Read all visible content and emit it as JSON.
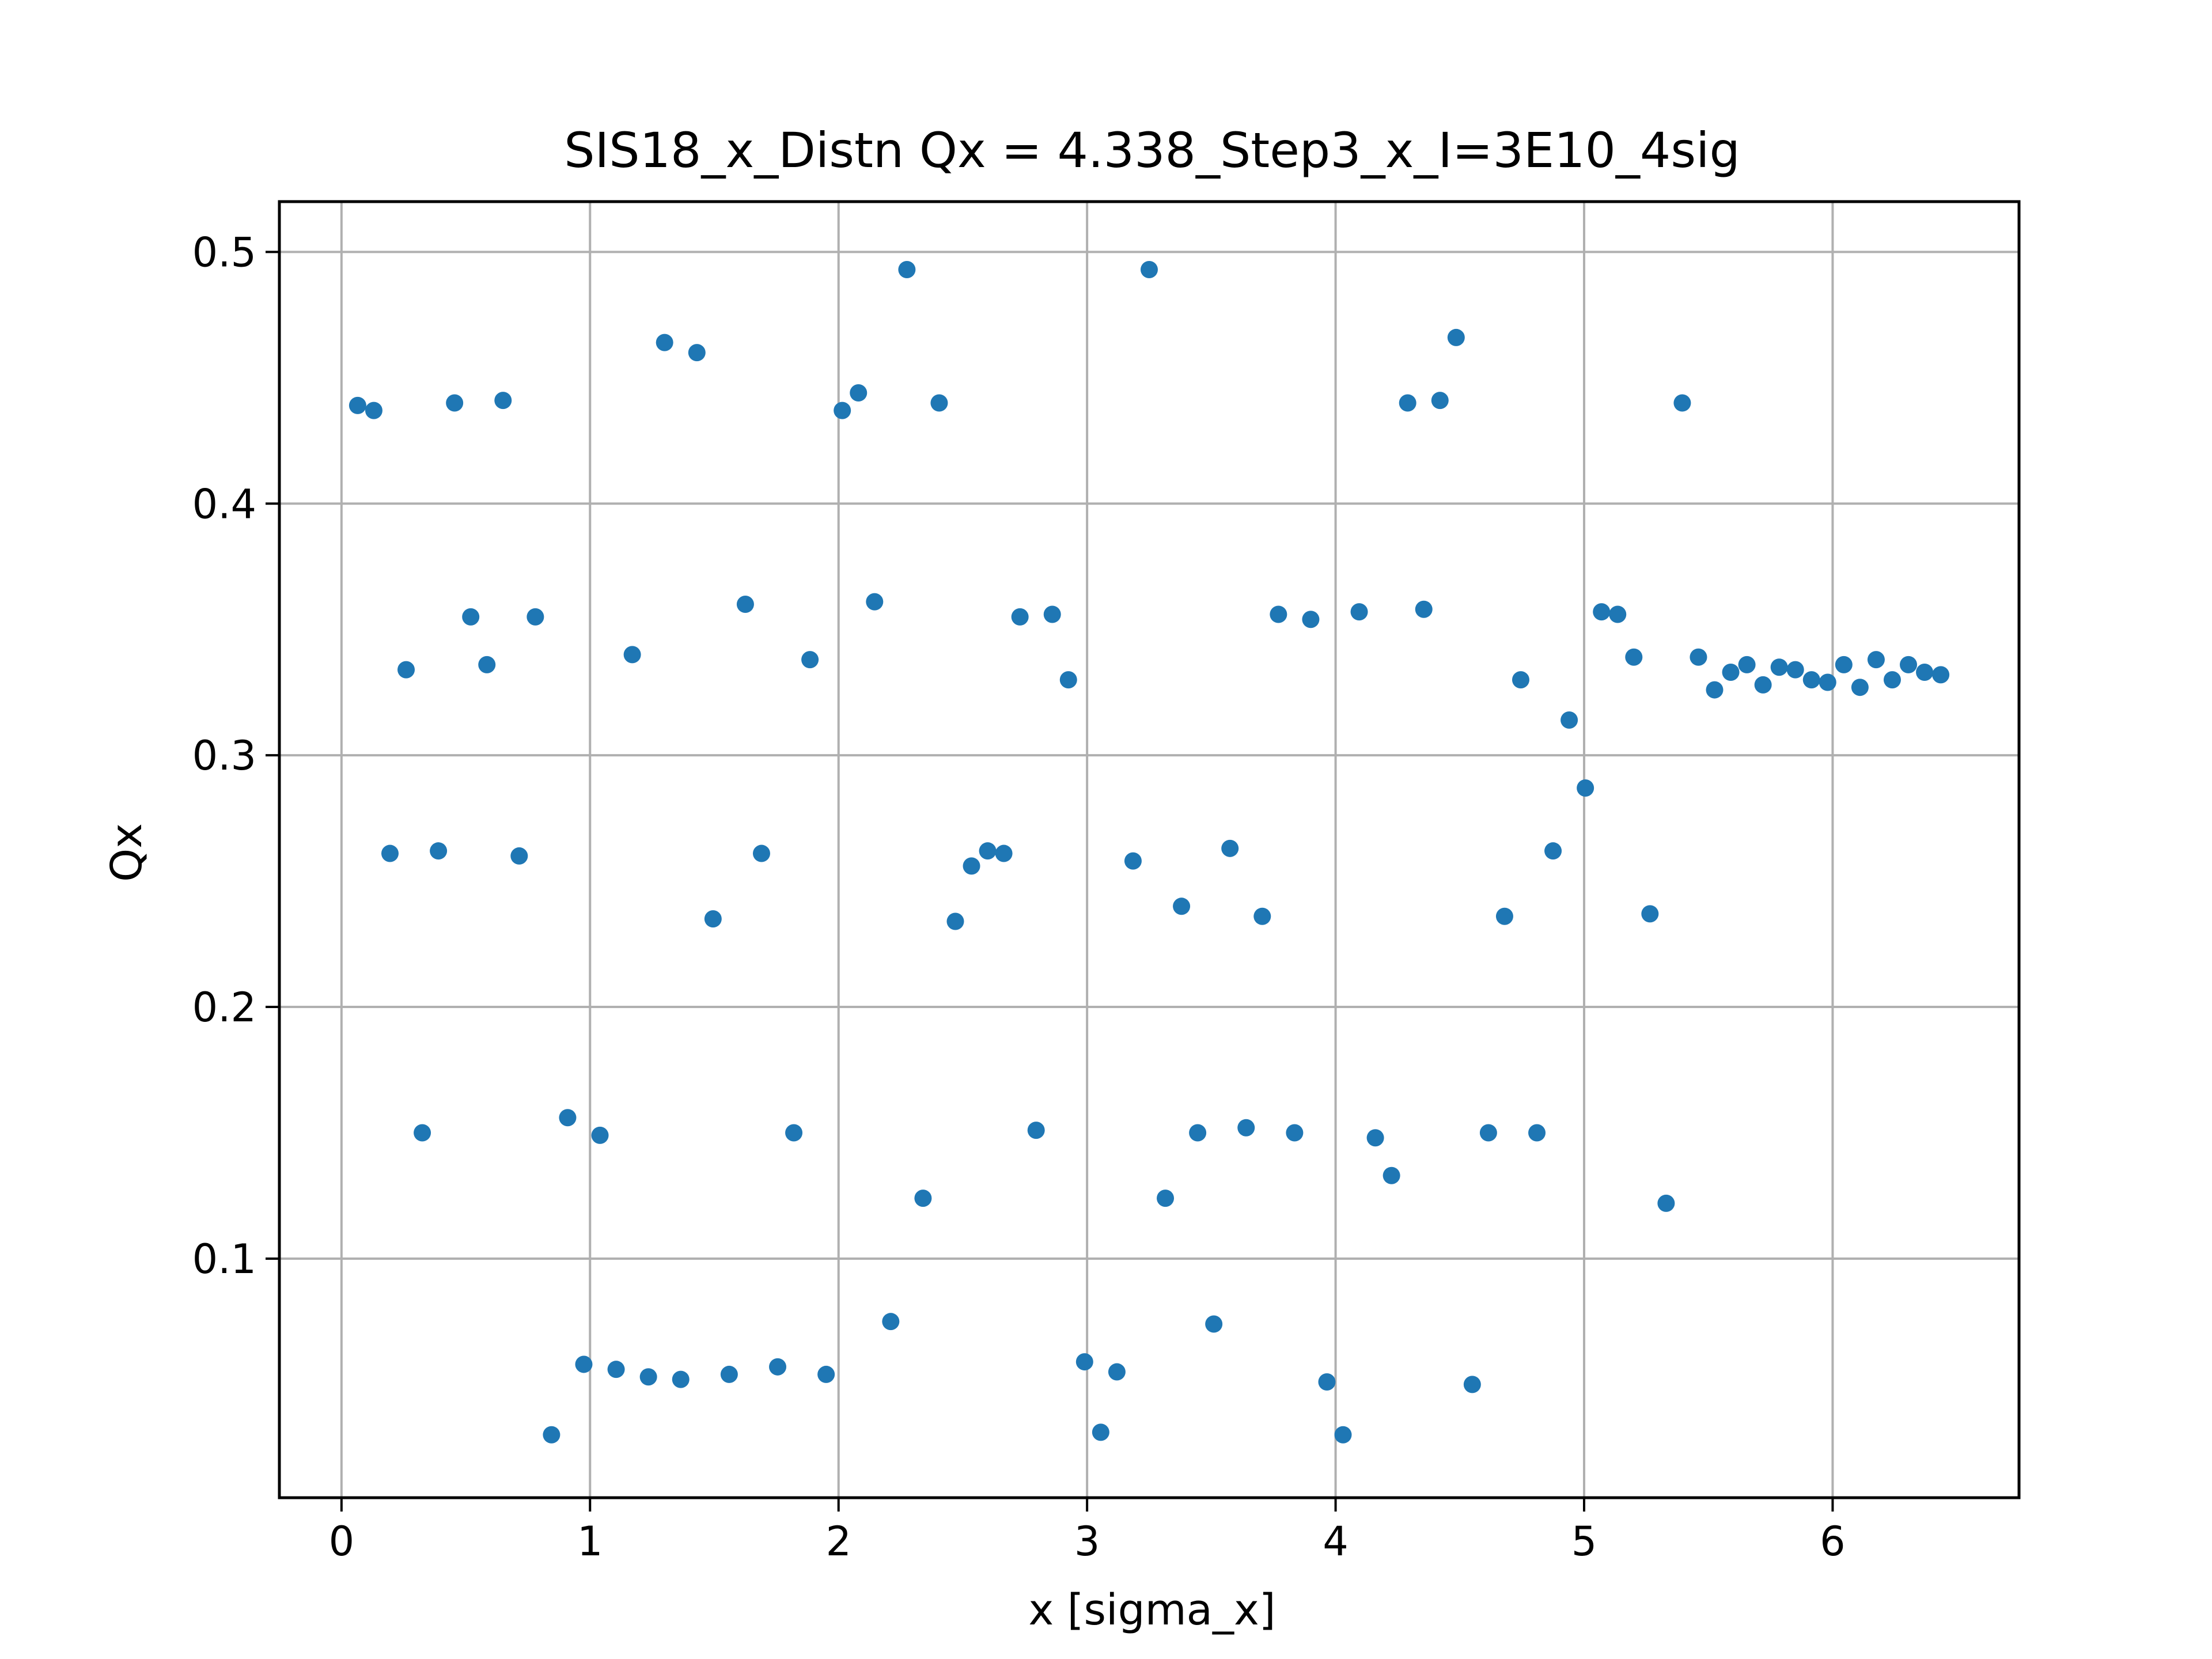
{
  "chart_data": {
    "type": "scatter",
    "title": "SIS18_x_Distn Qx = 4.338_Step3_x_I=3E10_4sig",
    "xlabel": "x [sigma_x]",
    "ylabel": "Qx",
    "xlim": [
      -0.25,
      6.75
    ],
    "ylim": [
      0.005,
      0.52
    ],
    "xticks": [
      0,
      1,
      2,
      3,
      4,
      5,
      6
    ],
    "yticks": [
      0.1,
      0.2,
      0.3,
      0.4,
      0.5
    ],
    "xtick_labels": [
      "0",
      "1",
      "2",
      "3",
      "4",
      "5",
      "6"
    ],
    "ytick_labels": [
      "0.1",
      "0.2",
      "0.3",
      "0.4",
      "0.5"
    ],
    "grid": true,
    "marker_color": "#1f77b4",
    "points": [
      [
        0.065,
        0.439
      ],
      [
        0.13,
        0.437
      ],
      [
        0.195,
        0.261
      ],
      [
        0.26,
        0.334
      ],
      [
        0.325,
        0.15
      ],
      [
        0.39,
        0.262
      ],
      [
        0.455,
        0.44
      ],
      [
        0.52,
        0.355
      ],
      [
        0.585,
        0.336
      ],
      [
        0.65,
        0.441
      ],
      [
        0.715,
        0.26
      ],
      [
        0.78,
        0.355
      ],
      [
        0.845,
        0.03
      ],
      [
        0.91,
        0.156
      ],
      [
        0.975,
        0.058
      ],
      [
        1.04,
        0.149
      ],
      [
        1.105,
        0.056
      ],
      [
        1.17,
        0.34
      ],
      [
        1.235,
        0.053
      ],
      [
        1.3,
        0.464
      ],
      [
        1.365,
        0.052
      ],
      [
        1.43,
        0.46
      ],
      [
        1.495,
        0.235
      ],
      [
        1.56,
        0.054
      ],
      [
        1.625,
        0.36
      ],
      [
        1.69,
        0.261
      ],
      [
        1.755,
        0.057
      ],
      [
        1.82,
        0.15
      ],
      [
        1.885,
        0.338
      ],
      [
        1.95,
        0.054
      ],
      [
        2.015,
        0.437
      ],
      [
        2.08,
        0.444
      ],
      [
        2.145,
        0.361
      ],
      [
        2.21,
        0.075
      ],
      [
        2.275,
        0.493
      ],
      [
        2.34,
        0.124
      ],
      [
        2.405,
        0.44
      ],
      [
        2.47,
        0.234
      ],
      [
        2.535,
        0.256
      ],
      [
        2.6,
        0.262
      ],
      [
        2.665,
        0.261
      ],
      [
        2.73,
        0.355
      ],
      [
        2.795,
        0.151
      ],
      [
        2.86,
        0.356
      ],
      [
        2.925,
        0.33
      ],
      [
        2.99,
        0.059
      ],
      [
        3.055,
        0.031
      ],
      [
        3.12,
        0.055
      ],
      [
        3.185,
        0.258
      ],
      [
        3.25,
        0.493
      ],
      [
        3.315,
        0.124
      ],
      [
        3.38,
        0.24
      ],
      [
        3.445,
        0.15
      ],
      [
        3.51,
        0.074
      ],
      [
        3.575,
        0.263
      ],
      [
        3.64,
        0.152
      ],
      [
        3.705,
        0.236
      ],
      [
        3.77,
        0.356
      ],
      [
        3.835,
        0.15
      ],
      [
        3.9,
        0.354
      ],
      [
        3.965,
        0.051
      ],
      [
        4.03,
        0.03
      ],
      [
        4.095,
        0.357
      ],
      [
        4.16,
        0.148
      ],
      [
        4.225,
        0.133
      ],
      [
        4.29,
        0.44
      ],
      [
        4.355,
        0.358
      ],
      [
        4.42,
        0.441
      ],
      [
        4.485,
        0.466
      ],
      [
        4.55,
        0.05
      ],
      [
        4.615,
        0.15
      ],
      [
        4.68,
        0.236
      ],
      [
        4.745,
        0.33
      ],
      [
        4.81,
        0.15
      ],
      [
        4.875,
        0.262
      ],
      [
        4.94,
        0.314
      ],
      [
        5.005,
        0.287
      ],
      [
        5.07,
        0.357
      ],
      [
        5.135,
        0.356
      ],
      [
        5.2,
        0.339
      ],
      [
        5.265,
        0.237
      ],
      [
        5.33,
        0.122
      ],
      [
        5.395,
        0.44
      ],
      [
        5.46,
        0.339
      ],
      [
        5.525,
        0.326
      ],
      [
        5.59,
        0.333
      ],
      [
        5.655,
        0.336
      ],
      [
        5.72,
        0.328
      ],
      [
        5.785,
        0.335
      ],
      [
        5.85,
        0.334
      ],
      [
        5.915,
        0.33
      ],
      [
        5.98,
        0.329
      ],
      [
        6.045,
        0.336
      ],
      [
        6.11,
        0.327
      ],
      [
        6.175,
        0.338
      ],
      [
        6.24,
        0.33
      ],
      [
        6.305,
        0.336
      ],
      [
        6.37,
        0.333
      ],
      [
        6.435,
        0.332
      ]
    ]
  }
}
